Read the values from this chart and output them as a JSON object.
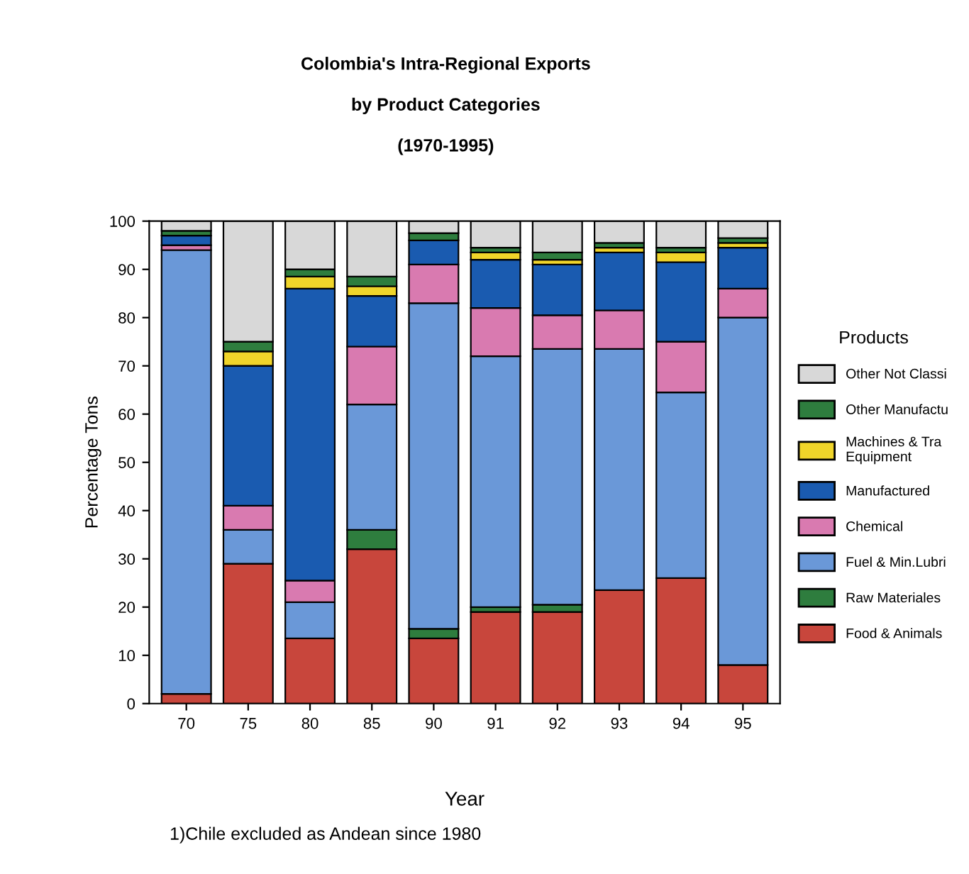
{
  "chart_data": {
    "type": "bar",
    "stacked": true,
    "title": "Colombia's Intra-Regional Exports\n\nby Product Categories\n\n(1970-1995)",
    "xlabel": "Year",
    "ylabel": "Percentage Tons",
    "legend_title": "Products",
    "legend": "right",
    "categories": [
      "70",
      "75",
      "80",
      "85",
      "90",
      "91",
      "92",
      "93",
      "94",
      "95"
    ],
    "ylim": [
      0,
      100
    ],
    "yticks": [
      0,
      10,
      20,
      30,
      40,
      50,
      60,
      70,
      80,
      90,
      100
    ],
    "grid": false,
    "annotations": [
      "1)Chile excluded as Andean since 1980"
    ],
    "series": [
      {
        "name": "Food & Animals",
        "color": "#c8463c",
        "values": [
          2,
          29,
          13.5,
          32,
          13.5,
          19,
          19,
          23.5,
          26,
          8
        ]
      },
      {
        "name": "Raw Materiales",
        "color": "#2e7d3e",
        "values": [
          0,
          0,
          0,
          4,
          2,
          1,
          1.5,
          0,
          0,
          0
        ]
      },
      {
        "name": "Fuel & Min.Lubri",
        "color": "#6a98d8",
        "values": [
          92,
          7,
          7.5,
          26,
          67.5,
          52,
          53,
          50,
          38.5,
          72
        ]
      },
      {
        "name": "Chemical",
        "color": "#d97ab0",
        "values": [
          1,
          5,
          4.5,
          12,
          8,
          10,
          7,
          8,
          10.5,
          6
        ]
      },
      {
        "name": "Manufactured",
        "color": "#1a5bb0",
        "values": [
          2,
          29,
          60.5,
          10.5,
          5,
          10,
          10.5,
          12,
          16.5,
          8.5
        ]
      },
      {
        "name": "Machines & Tra\nEquipment",
        "color": "#f0d52a",
        "values": [
          0,
          3,
          2.5,
          2,
          0,
          1.5,
          1,
          1,
          2,
          1
        ]
      },
      {
        "name": "Other Manufactu",
        "color": "#2e7d3e",
        "values": [
          1,
          2,
          1.5,
          2,
          1.5,
          1,
          1.5,
          1,
          1,
          1
        ]
      },
      {
        "name": "Other Not Classi",
        "color": "#d8d8d8",
        "values": [
          2,
          25,
          10,
          11.5,
          2.5,
          5.5,
          6.5,
          4.5,
          5.5,
          3.5
        ]
      }
    ]
  }
}
